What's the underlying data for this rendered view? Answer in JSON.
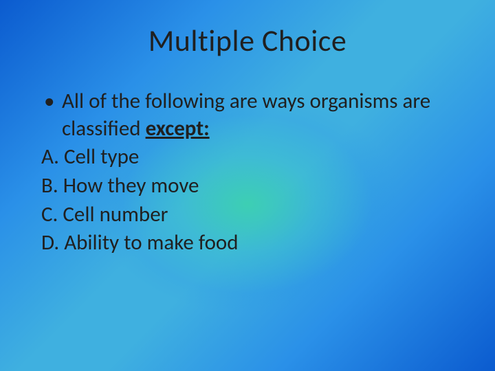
{
  "slide": {
    "title": "Multiple Choice",
    "title_fontsize": 44,
    "title_color": "#202020",
    "body_fontsize": 31,
    "body_color": "#202020",
    "question_prefix": "All of the following are ways organisms are classified ",
    "question_emph": "except:",
    "bullet_glyph": "•",
    "options": [
      {
        "label": "A.",
        "text": "Cell type"
      },
      {
        "label": "B.",
        "text": "How they move"
      },
      {
        "label": "C.",
        "text": "Cell number"
      },
      {
        "label": "D.",
        "text": "Ability to make food"
      }
    ],
    "background": {
      "outer_color": "#0b5bcf",
      "mid_color": "#2a90e8",
      "center_glow": "#3cdca0"
    }
  }
}
